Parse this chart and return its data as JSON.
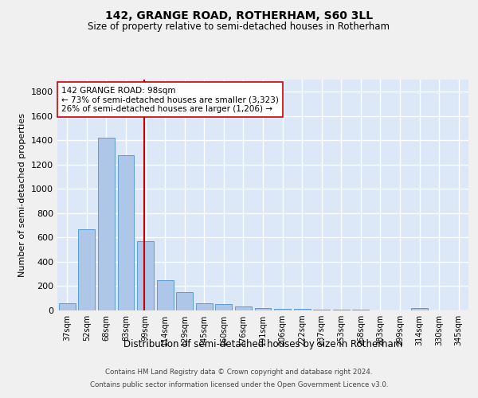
{
  "title": "142, GRANGE ROAD, ROTHERHAM, S60 3LL",
  "subtitle": "Size of property relative to semi-detached houses in Rotherham",
  "xlabel": "Distribution of semi-detached houses by size in Rotherham",
  "ylabel": "Number of semi-detached properties",
  "categories": [
    "37sqm",
    "52sqm",
    "68sqm",
    "83sqm",
    "99sqm",
    "114sqm",
    "129sqm",
    "145sqm",
    "160sqm",
    "176sqm",
    "191sqm",
    "206sqm",
    "222sqm",
    "237sqm",
    "253sqm",
    "268sqm",
    "283sqm",
    "299sqm",
    "314sqm",
    "330sqm",
    "345sqm"
  ],
  "values": [
    60,
    670,
    1420,
    1280,
    570,
    250,
    148,
    60,
    55,
    30,
    20,
    15,
    10,
    8,
    5,
    4,
    3,
    2,
    20,
    2,
    1
  ],
  "bar_color": "#aec6e8",
  "bar_edge_color": "#5b9bd5",
  "background_color": "#dce8f8",
  "grid_color": "#ffffff",
  "property_label": "142 GRANGE ROAD: 98sqm",
  "pct_smaller": 73,
  "count_smaller": 3323,
  "pct_larger": 26,
  "count_larger": 1206,
  "annotation_line_color": "#cc0000",
  "annotation_box_edge_color": "#cc0000",
  "ylim": [
    0,
    1900
  ],
  "yticks": [
    0,
    200,
    400,
    600,
    800,
    1000,
    1200,
    1400,
    1600,
    1800
  ],
  "footer_line1": "Contains HM Land Registry data © Crown copyright and database right 2024.",
  "footer_line2": "Contains public sector information licensed under the Open Government Licence v3.0."
}
